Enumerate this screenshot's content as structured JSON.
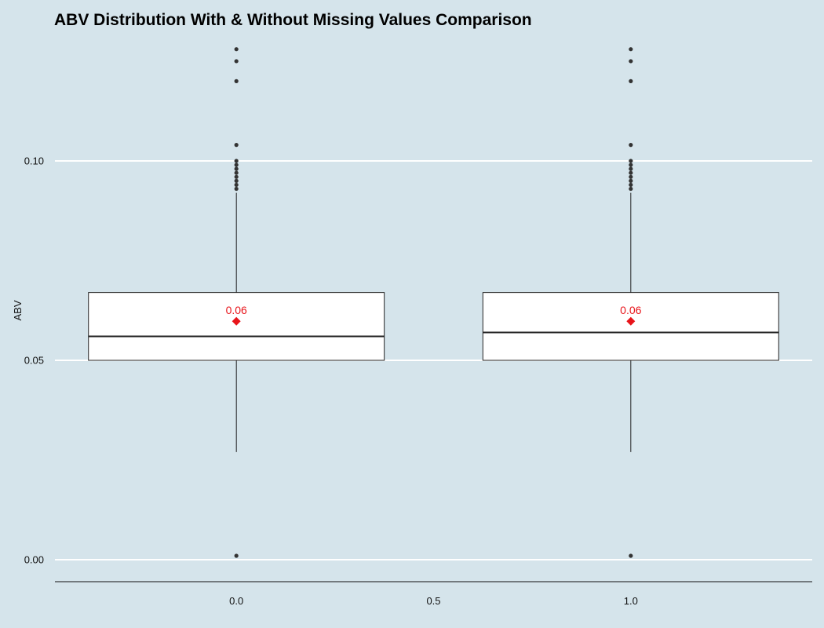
{
  "chart_data": {
    "type": "box",
    "title": "ABV Distribution With & Without Missing Values Comparison",
    "xlabel": "",
    "ylabel": "ABV",
    "xlim": [
      -0.46,
      1.46
    ],
    "ylim": [
      -0.0055,
      0.1305
    ],
    "x_ticks": [
      "0.0",
      "0.5",
      "1.0"
    ],
    "y_ticks": [
      "0.00",
      "0.05",
      "0.10"
    ],
    "grid": "horizontal major lines",
    "boxes": [
      {
        "x": 0.0,
        "whisker_low": 0.027,
        "q1": 0.05,
        "median": 0.056,
        "q3": 0.067,
        "whisker_high": 0.092,
        "mean": 0.0598,
        "mean_label": "0.06",
        "outliers": [
          0.001,
          0.093,
          0.094,
          0.095,
          0.096,
          0.097,
          0.098,
          0.099,
          0.1,
          0.104,
          0.12,
          0.125,
          0.128
        ]
      },
      {
        "x": 1.0,
        "whisker_low": 0.027,
        "q1": 0.05,
        "median": 0.057,
        "q3": 0.067,
        "whisker_high": 0.092,
        "mean": 0.0598,
        "mean_label": "0.06",
        "outliers": [
          0.001,
          0.093,
          0.094,
          0.095,
          0.096,
          0.097,
          0.098,
          0.099,
          0.1,
          0.104,
          0.12,
          0.125,
          0.128
        ]
      }
    ],
    "mean_color": "#e8141a",
    "box_fill": "#ffffff",
    "background": "#d5e4eb"
  }
}
